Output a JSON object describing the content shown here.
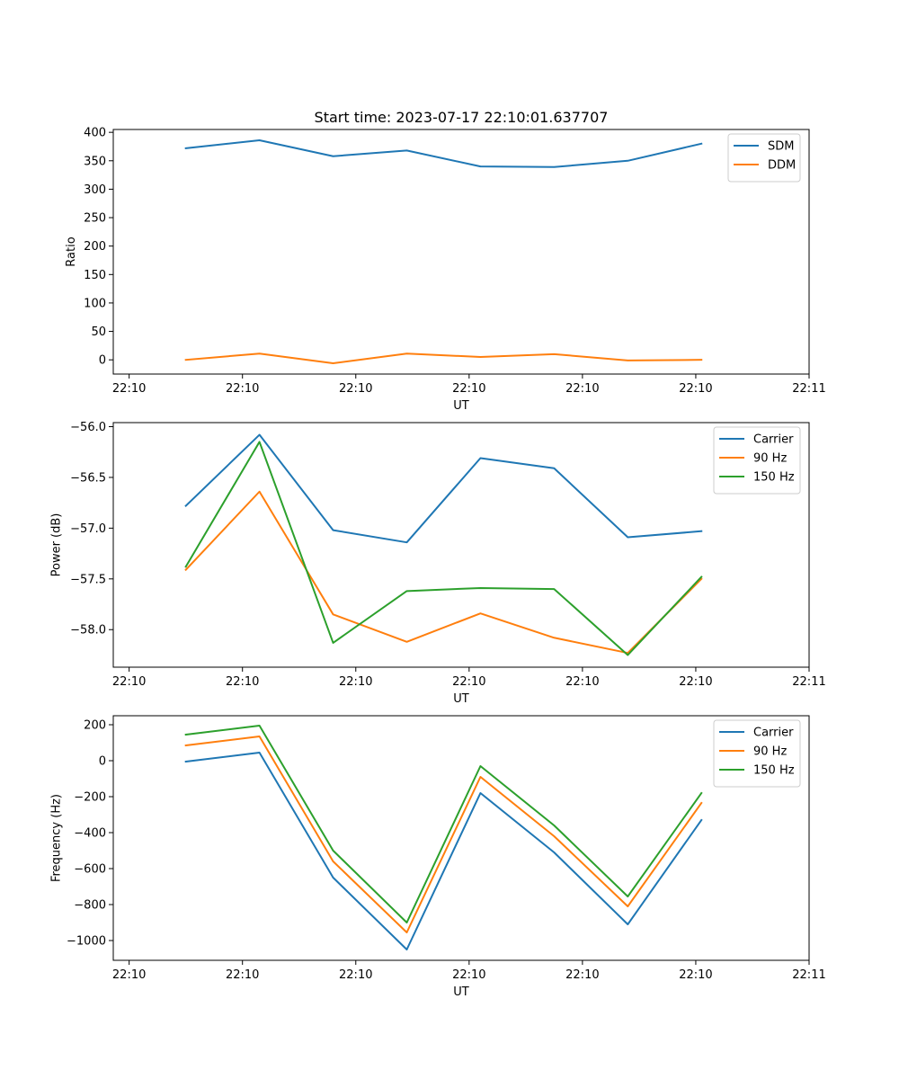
{
  "figure_title": "Start time: 2023-07-17 22:10:01.637707",
  "colors": {
    "blue": "#1f77b4",
    "orange": "#ff7f0e",
    "green": "#2ca02c"
  },
  "x_axis": {
    "label": "UT",
    "tick_labels": [
      "22:10",
      "22:10",
      "22:10",
      "22:10",
      "22:10",
      "22:10",
      "22:11"
    ],
    "tick_values": [
      0,
      1,
      2,
      3,
      4,
      5,
      6
    ],
    "range": [
      -0.14,
      6.0
    ],
    "point_x": [
      0.5,
      1.15,
      1.8,
      2.45,
      3.1,
      3.75,
      4.4,
      5.05
    ]
  },
  "chart_data": [
    {
      "type": "line",
      "title": "Start time: 2023-07-17 22:10:01.637707",
      "xlabel": "UT",
      "ylabel": "Ratio",
      "ylim": [
        -25,
        405
      ],
      "yticks": [
        0,
        50,
        100,
        150,
        200,
        250,
        300,
        350,
        400
      ],
      "ytick_labels": [
        "0",
        "50",
        "100",
        "150",
        "200",
        "250",
        "300",
        "350",
        "400"
      ],
      "legend_position": "top-right",
      "series": [
        {
          "name": "SDM",
          "color": "#1f77b4",
          "values": [
            372,
            386,
            358,
            368,
            340,
            339,
            350,
            380
          ]
        },
        {
          "name": "DDM",
          "color": "#ff7f0e",
          "values": [
            0,
            11,
            -6,
            11,
            5,
            10,
            -1,
            0
          ]
        }
      ]
    },
    {
      "type": "line",
      "title": "",
      "xlabel": "UT",
      "ylabel": "Power (dB)",
      "ylim": [
        -58.37,
        -55.96
      ],
      "yticks": [
        -58.0,
        -57.5,
        -57.0,
        -56.5,
        -56.0
      ],
      "ytick_labels": [
        "−58.0",
        "−57.5",
        "−57.0",
        "−56.5",
        "−56.0"
      ],
      "legend_position": "top-right",
      "series": [
        {
          "name": "Carrier",
          "color": "#1f77b4",
          "values": [
            -56.78,
            -56.08,
            -57.02,
            -57.14,
            -56.31,
            -56.41,
            -57.09,
            -57.03
          ]
        },
        {
          "name": "90 Hz",
          "color": "#ff7f0e",
          "values": [
            -57.41,
            -56.64,
            -57.85,
            -58.12,
            -57.84,
            -58.08,
            -58.23,
            -57.5
          ]
        },
        {
          "name": "150 Hz",
          "color": "#2ca02c",
          "values": [
            -57.38,
            -56.15,
            -58.13,
            -57.62,
            -57.59,
            -57.6,
            -58.25,
            -57.48
          ]
        }
      ]
    },
    {
      "type": "line",
      "title": "",
      "xlabel": "UT",
      "ylabel": "Frequency (Hz)",
      "ylim": [
        -1110,
        250
      ],
      "yticks": [
        -1000,
        -800,
        -600,
        -400,
        -200,
        0,
        200
      ],
      "ytick_labels": [
        "−1000",
        "−800",
        "−600",
        "−400",
        "−200",
        "0",
        "200"
      ],
      "legend_position": "top-right",
      "series": [
        {
          "name": "Carrier",
          "color": "#1f77b4",
          "values": [
            -5,
            45,
            -650,
            -1050,
            -180,
            -510,
            -910,
            -330
          ]
        },
        {
          "name": "90 Hz",
          "color": "#ff7f0e",
          "values": [
            85,
            135,
            -560,
            -955,
            -90,
            -420,
            -810,
            -235
          ]
        },
        {
          "name": "150 Hz",
          "color": "#2ca02c",
          "values": [
            145,
            195,
            -500,
            -900,
            -30,
            -360,
            -755,
            -180
          ]
        }
      ]
    }
  ]
}
